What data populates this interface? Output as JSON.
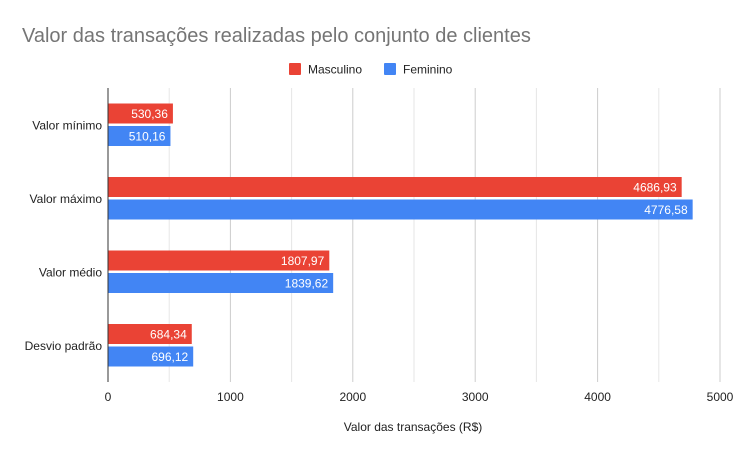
{
  "chart_data": {
    "type": "bar",
    "orientation": "horizontal",
    "title": "Valor das transações realizadas pelo conjunto de clientes",
    "xlabel": "Valor das transações (R$)",
    "ylabel": "",
    "categories": [
      "Valor mínimo",
      "Valor máximo",
      "Valor médio",
      "Desvio padrão"
    ],
    "series": [
      {
        "name": "Masculino",
        "color": "#ea4335",
        "values": [
          530.36,
          4686.93,
          1807.97,
          684.34
        ],
        "labels": [
          "530,36",
          "4686,93",
          "1807,97",
          "684,34"
        ]
      },
      {
        "name": "Feminino",
        "color": "#4285f4",
        "values": [
          510.16,
          4776.58,
          1839.62,
          696.12
        ],
        "labels": [
          "510,16",
          "4776,58",
          "1839,62",
          "696,12"
        ]
      }
    ],
    "xlim": [
      0,
      5000
    ],
    "xticks": [
      0,
      1000,
      2000,
      3000,
      4000,
      5000
    ],
    "xtick_labels": [
      "0",
      "1000",
      "2000",
      "3000",
      "4000",
      "5000"
    ],
    "grid": true,
    "legend_position": "top"
  }
}
